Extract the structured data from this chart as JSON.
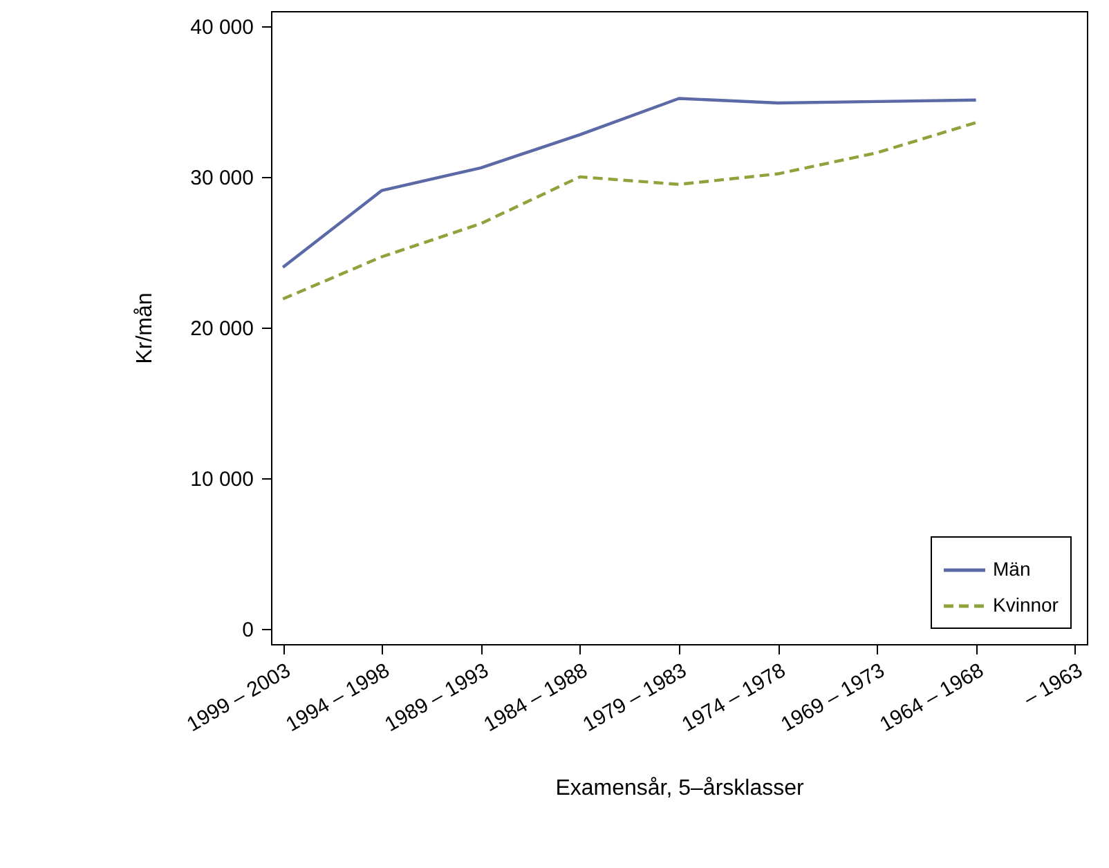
{
  "chart_data": {
    "type": "line",
    "xlabel": "Examensår, 5–årsklasser",
    "ylabel": "Kr/mån",
    "categories": [
      "1999 – 2003",
      "1994 – 1998",
      "1989 – 1993",
      "1984 – 1988",
      "1979 – 1983",
      "1974 – 1978",
      "1969 – 1973",
      "1964 – 1968",
      "– 1963"
    ],
    "series": [
      {
        "name": "Män",
        "color": "#5b69a6",
        "line_style": "solid",
        "values": [
          24000,
          29100,
          30600,
          32800,
          35200,
          34900,
          35000,
          35100,
          null
        ]
      },
      {
        "name": "Kvinnor",
        "color": "#8fa33c",
        "line_style": "dashed",
        "values": [
          21900,
          24700,
          26900,
          30000,
          29500,
          30200,
          31600,
          33600,
          null
        ]
      }
    ],
    "ylim": [
      -1000,
      41000
    ],
    "yticks": [
      {
        "value": 0,
        "label": "0"
      },
      {
        "value": 10000,
        "label": "10 000"
      },
      {
        "value": 20000,
        "label": "20 000"
      },
      {
        "value": 30000,
        "label": "30 000"
      },
      {
        "value": 40000,
        "label": "40 000"
      }
    ],
    "grid": false,
    "legend": "bottom right"
  }
}
